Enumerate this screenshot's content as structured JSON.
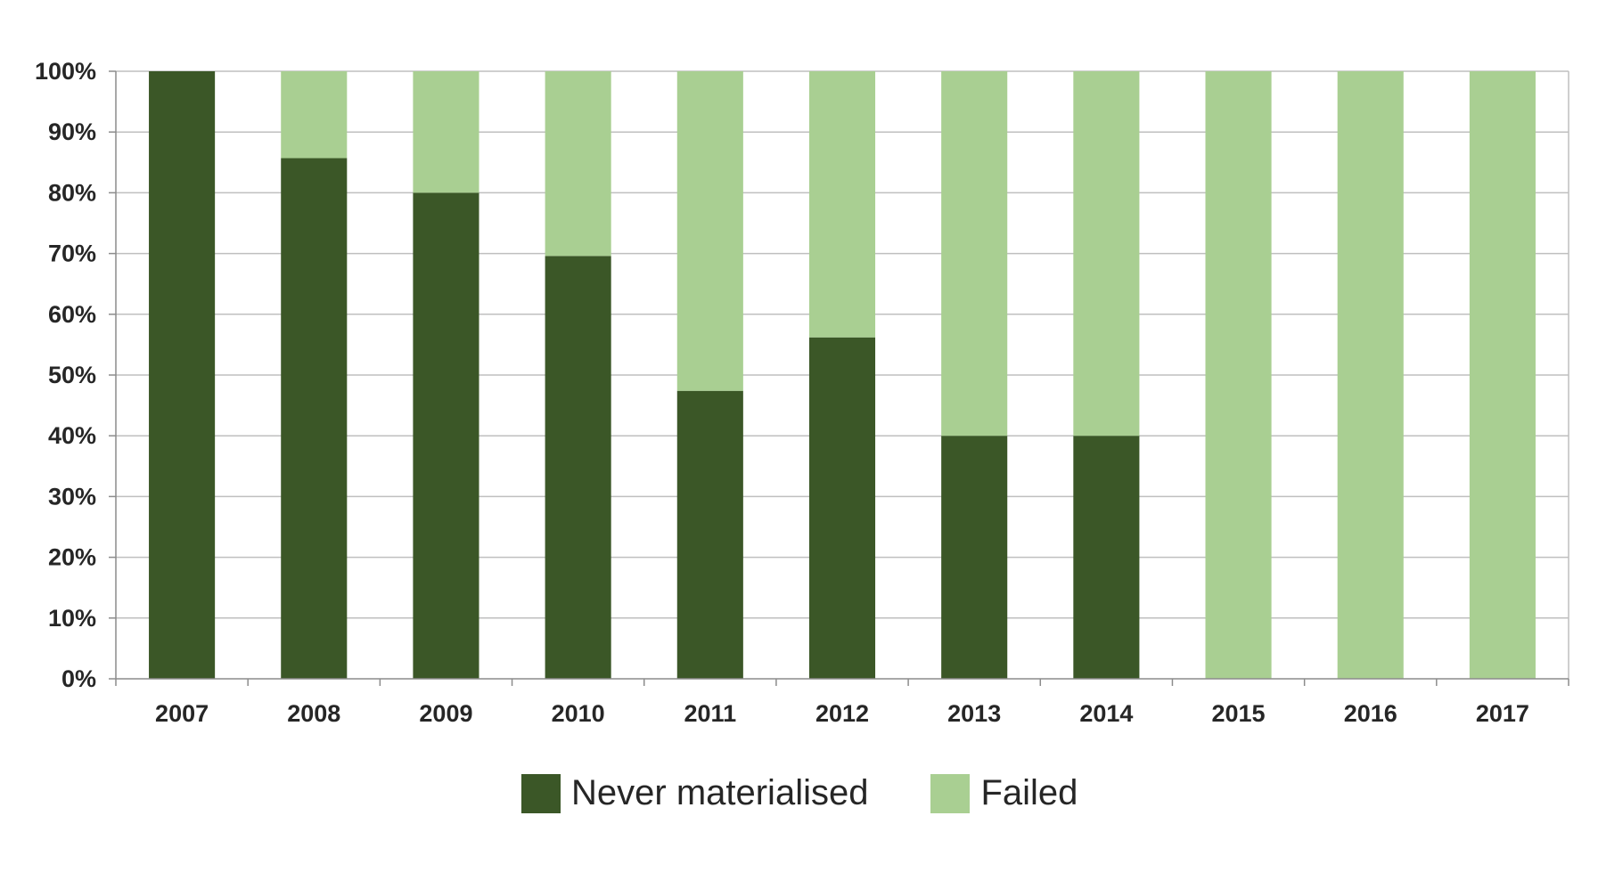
{
  "chart_data": {
    "type": "bar",
    "stacked": true,
    "percent_stacked": true,
    "categories": [
      "2007",
      "2008",
      "2009",
      "2010",
      "2011",
      "2012",
      "2013",
      "2014",
      "2015",
      "2016",
      "2017"
    ],
    "series": [
      {
        "name": "Never materialised",
        "color": "#3b5727",
        "values": [
          100,
          85.7,
          80,
          69.6,
          47.4,
          56.2,
          40,
          40,
          0,
          0,
          0
        ]
      },
      {
        "name": "Failed",
        "color": "#a9cf92",
        "values": [
          0,
          14.3,
          20,
          30.4,
          52.6,
          43.8,
          60,
          60,
          100,
          100,
          100
        ]
      }
    ],
    "yticks": [
      "0%",
      "10%",
      "20%",
      "30%",
      "40%",
      "50%",
      "60%",
      "70%",
      "80%",
      "90%",
      "100%"
    ],
    "ylim": [
      0,
      100
    ],
    "grid": true,
    "legend_position": "bottom",
    "title": "",
    "xlabel": "",
    "ylabel": ""
  }
}
